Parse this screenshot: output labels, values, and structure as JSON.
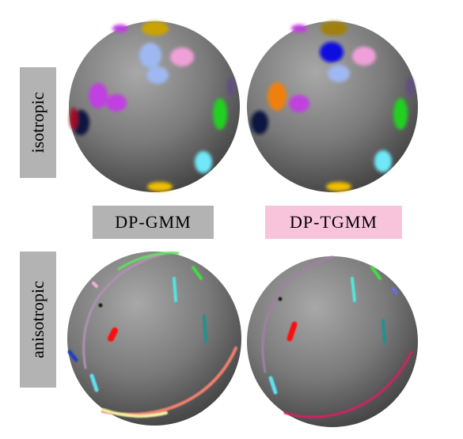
{
  "row_labels": [
    "isotropic",
    "anisotropic"
  ],
  "column_labels": [
    "DP-GMM",
    "DP-TGMM"
  ]
}
